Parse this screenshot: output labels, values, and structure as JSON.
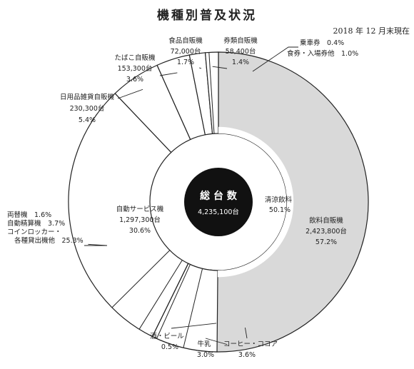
{
  "title": "機種別普及状況",
  "date_note": "2018 年 12 月末現在",
  "colors": {
    "beverage": "#d9d9d9",
    "other": "#ffffff",
    "stroke": "#222222",
    "center": "#111111"
  },
  "chart_data": {
    "type": "pie",
    "variant": "donut",
    "center": {
      "title": "総 台 数",
      "value": "4,235,100台"
    },
    "slices": [
      {
        "name": "飲料自販機",
        "count": "2,423,800台",
        "percent": 57.2,
        "fill": "gray"
      },
      {
        "name": "自動サービス機",
        "count": "1,297,300台",
        "percent": 30.6,
        "fill": "white"
      },
      {
        "name": "日用品雑貨自販機",
        "count": "230,300台",
        "percent": 5.4,
        "fill": "white"
      },
      {
        "name": "たばこ自販機",
        "count": "153,300台",
        "percent": 3.6,
        "fill": "white"
      },
      {
        "name": "食品自販機",
        "count": "72,000台",
        "percent": 1.7,
        "fill": "white"
      },
      {
        "name": "券類自販機",
        "count": "58,400台",
        "percent": 1.4,
        "fill": "white"
      }
    ],
    "beverage_breakdown": [
      {
        "name": "清涼飲料",
        "percent": 50.1
      },
      {
        "name": "コーヒー・ココア",
        "percent": 3.6
      },
      {
        "name": "牛乳",
        "percent": 3.0
      },
      {
        "name": "酒・ビール",
        "percent": 0.5
      }
    ],
    "ticket_breakdown": [
      {
        "name": "乗車券",
        "percent": 0.4
      },
      {
        "name": "食券・入場券他",
        "percent": 1.0
      }
    ],
    "service_breakdown": [
      {
        "name": "両替機",
        "percent": 1.6
      },
      {
        "name": "自動精算機",
        "percent": 3.7
      },
      {
        "name": "コインロッカー・各種貸出機他",
        "percent": 25.3
      }
    ]
  },
  "labels": {
    "beverage": {
      "name": "飲料自販機",
      "count": "2,423,800台",
      "percent": "57.2%"
    },
    "soft_drink": {
      "name": "清涼飲料",
      "percent": "50.1%"
    },
    "coffee": {
      "name": "コーヒー・ココア",
      "percent": "3.6%"
    },
    "milk": {
      "name": "牛乳",
      "percent": "3.0%"
    },
    "alcohol": {
      "name": "酒・ビール",
      "percent": "0.5%"
    },
    "service": {
      "name": "自動サービス機",
      "count": "1,297,300台",
      "percent": "30.6%"
    },
    "service_sub": {
      "line1": "両替機　1.6%",
      "line2": "自動精算機　3.7%",
      "line3": "コインロッカー・",
      "line4": "各種貸出機他　25.3%"
    },
    "daily_goods": {
      "name": "日用品雑貨自販機",
      "count": "230,300台",
      "percent": "5.4%"
    },
    "tobacco": {
      "name": "たばこ自販機",
      "count": "153,300台",
      "percent": "3.6%"
    },
    "food": {
      "name": "食品自販機",
      "count": "72,000台",
      "percent": "1.7%"
    },
    "ticket": {
      "name": "券類自販機",
      "count": "58,400台",
      "percent": "1.4%"
    },
    "ticket_sub": {
      "line1": "乗車券　0.4%",
      "line2": "食券・入場券他　1.0%"
    }
  }
}
